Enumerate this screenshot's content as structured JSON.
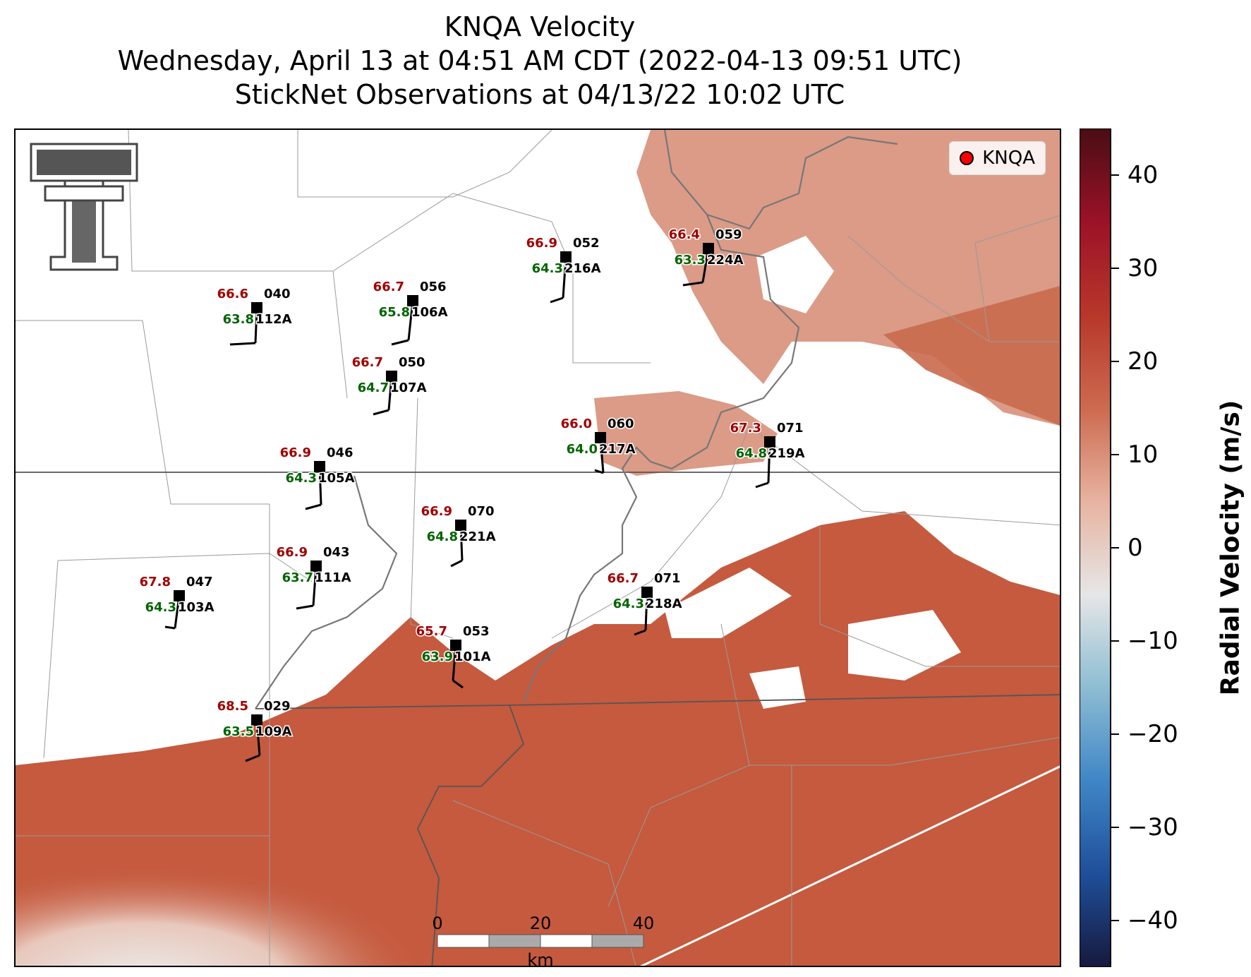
{
  "title": {
    "line1": "KNQA Velocity",
    "line2": "Wednesday, April 13 at 04:51 AM CDT (2022-04-13 09:51 UTC)",
    "line3": "StickNet Observations at 04/13/22 10:02 UTC"
  },
  "legend": {
    "label": "KNQA",
    "marker_color": "#ff0000"
  },
  "colorbar": {
    "label": "Radial Velocity (m/s)",
    "range": [
      -45,
      45
    ],
    "ticks": [
      40,
      30,
      20,
      10,
      0,
      -10,
      -20,
      -30,
      -40
    ],
    "tick_labels": [
      "40",
      "30",
      "20",
      "10",
      "0",
      "−10",
      "−20",
      "−30",
      "−40"
    ],
    "colors": [
      "#16193e",
      "#1f4f9a",
      "#3f86c6",
      "#8dbdd3",
      "#e6e6e6",
      "#e7b3a0",
      "#cc6a4f",
      "#b8372a",
      "#9b1228",
      "#4a0d14"
    ]
  },
  "scale_bar": {
    "ticks": [
      "0",
      "20",
      "40"
    ],
    "unit": "km"
  },
  "colors": {
    "temperature": "#a00000",
    "dewpoint": "#006400",
    "id": "#000000",
    "velocity_fill": "#c55a3e"
  },
  "stations": [
    {
      "temp": "66.6",
      "dew": "63.8",
      "num": "040",
      "id": "112A"
    },
    {
      "temp": "66.7",
      "dew": "65.8",
      "num": "056",
      "id": "106A"
    },
    {
      "temp": "66.9",
      "dew": "64.3",
      "num": "052",
      "id": "216A"
    },
    {
      "temp": "66.4",
      "dew": "63.3",
      "num": "059",
      "id": "224A"
    },
    {
      "temp": "66.7",
      "dew": "64.7",
      "num": "050",
      "id": "107A"
    },
    {
      "temp": "66.0",
      "dew": "64.0",
      "num": "060",
      "id": "217A"
    },
    {
      "temp": "67.3",
      "dew": "64.8",
      "num": "071",
      "id": "219A"
    },
    {
      "temp": "66.9",
      "dew": "64.3",
      "num": "046",
      "id": "105A"
    },
    {
      "temp": "66.9",
      "dew": "64.8",
      "num": "070",
      "id": "221A"
    },
    {
      "temp": "66.9",
      "dew": "63.7",
      "num": "043",
      "id": "111A"
    },
    {
      "temp": "67.8",
      "dew": "64.3",
      "num": "047",
      "id": "103A"
    },
    {
      "temp": "66.7",
      "dew": "64.3",
      "num": "071",
      "id": "218A"
    },
    {
      "temp": "65.7",
      "dew": "63.9",
      "num": "053",
      "id": "101A"
    },
    {
      "temp": "68.5",
      "dew": "63.5",
      "num": "029",
      "id": "109A"
    }
  ]
}
